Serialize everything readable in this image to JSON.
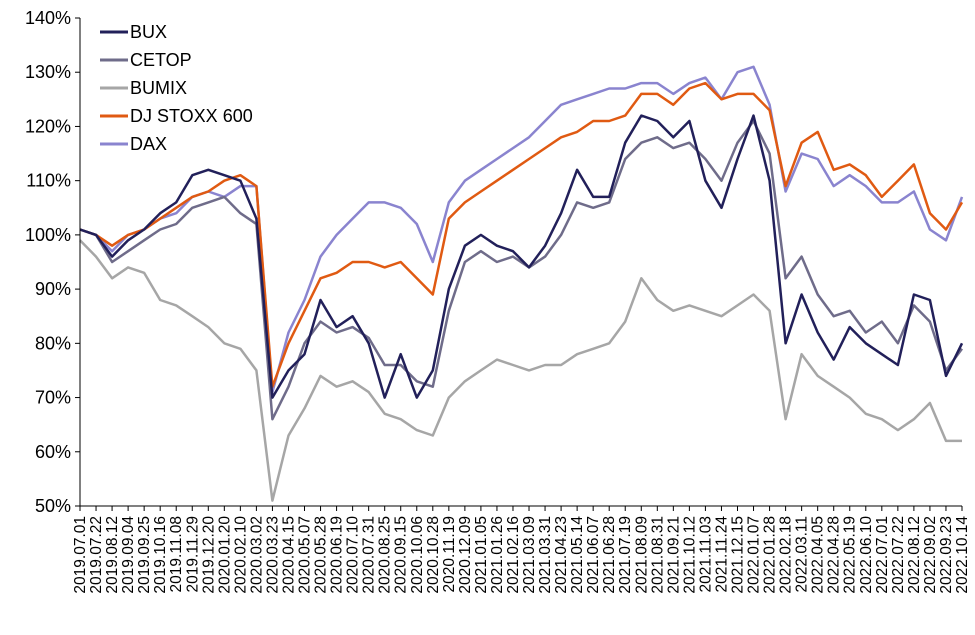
{
  "chart_data": {
    "type": "line",
    "ylim": [
      50,
      140
    ],
    "yticks": [
      {
        "value": 50,
        "label": "50%"
      },
      {
        "value": 60,
        "label": "60%"
      },
      {
        "value": 70,
        "label": "70%"
      },
      {
        "value": 80,
        "label": "80%"
      },
      {
        "value": 90,
        "label": "90%"
      },
      {
        "value": 100,
        "label": "100%"
      },
      {
        "value": 110,
        "label": "110%"
      },
      {
        "value": 120,
        "label": "120%"
      },
      {
        "value": 130,
        "label": "130%"
      },
      {
        "value": 140,
        "label": "140%"
      }
    ],
    "x": [
      "2019.07.01",
      "2019.07.22",
      "2019.08.12",
      "2019.09.04",
      "2019.09.25",
      "2019.10.16",
      "2019.11.08",
      "2019.11.29",
      "2019.12.20",
      "2020.01.20",
      "2020.02.10",
      "2020.03.02",
      "2020.03.23",
      "2020.04.15",
      "2020.05.07",
      "2020.05.28",
      "2020.06.19",
      "2020.07.10",
      "2020.07.31",
      "2020.08.25",
      "2020.09.15",
      "2020.10.06",
      "2020.10.28",
      "2020.11.19",
      "2020.12.09",
      "2021.01.05",
      "2021.01.26",
      "2021.02.16",
      "2021.03.09",
      "2021.03.31",
      "2021.04.23",
      "2021.05.14",
      "2021.06.07",
      "2021.06.28",
      "2021.07.19",
      "2021.08.09",
      "2021.08.31",
      "2021.09.21",
      "2021.10.12",
      "2021.11.03",
      "2021.11.24",
      "2021.12.15",
      "2022.01.07",
      "2022.01.28",
      "2022.02.18",
      "2022.03.11",
      "2022.04.05",
      "2022.04.28",
      "2022.05.19",
      "2022.06.10",
      "2022.07.01",
      "2022.07.22",
      "2022.08.12",
      "2022.09.02",
      "2022.09.23",
      "2022.10.14"
    ],
    "legend_position": "top-left",
    "grid": false,
    "series": [
      {
        "name": "BUX",
        "color": "#22205a",
        "values": [
          101,
          100,
          96,
          99,
          101,
          104,
          106,
          111,
          112,
          111,
          110,
          103,
          70,
          75,
          78,
          88,
          83,
          85,
          80,
          70,
          78,
          70,
          75,
          90,
          98,
          100,
          98,
          97,
          94,
          98,
          104,
          112,
          107,
          107,
          117,
          122,
          121,
          118,
          121,
          110,
          105,
          114,
          122,
          110,
          80,
          89,
          82,
          77,
          83,
          80,
          78,
          76,
          89,
          88,
          74,
          80
        ]
      },
      {
        "name": "CETOP",
        "color": "#6f6c8a",
        "values": [
          101,
          100,
          95,
          97,
          99,
          101,
          102,
          105,
          106,
          107,
          104,
          102,
          66,
          72,
          80,
          84,
          82,
          83,
          81,
          76,
          76,
          73,
          72,
          86,
          95,
          97,
          95,
          96,
          94,
          96,
          100,
          106,
          105,
          106,
          114,
          117,
          118,
          116,
          117,
          114,
          110,
          117,
          121,
          115,
          92,
          96,
          89,
          85,
          86,
          82,
          84,
          80,
          87,
          84,
          75,
          79
        ]
      },
      {
        "name": "BUMIX",
        "color": "#a6a6a6",
        "values": [
          99,
          96,
          92,
          94,
          93,
          88,
          87,
          85,
          83,
          80,
          79,
          75,
          51,
          63,
          68,
          74,
          72,
          73,
          71,
          67,
          66,
          64,
          63,
          70,
          73,
          75,
          77,
          76,
          75,
          76,
          76,
          78,
          79,
          80,
          84,
          92,
          88,
          86,
          87,
          86,
          85,
          87,
          89,
          86,
          66,
          78,
          74,
          72,
          70,
          67,
          66,
          64,
          66,
          69,
          62,
          62
        ]
      },
      {
        "name": "DJ STOXX 600",
        "color": "#e05a12",
        "values": [
          101,
          100,
          98,
          100,
          101,
          103,
          105,
          107,
          108,
          110,
          111,
          109,
          72,
          80,
          86,
          92,
          93,
          95,
          95,
          94,
          95,
          92,
          89,
          103,
          106,
          108,
          110,
          112,
          114,
          116,
          118,
          119,
          121,
          121,
          122,
          126,
          126,
          124,
          127,
          128,
          125,
          126,
          126,
          123,
          109,
          117,
          119,
          112,
          113,
          111,
          107,
          110,
          113,
          104,
          101,
          106
        ]
      },
      {
        "name": "DAX",
        "color": "#8a84cf",
        "values": [
          101,
          100,
          97,
          100,
          101,
          103,
          104,
          107,
          108,
          107,
          109,
          109,
          71,
          82,
          88,
          96,
          100,
          103,
          106,
          106,
          105,
          102,
          95,
          106,
          110,
          112,
          114,
          116,
          118,
          121,
          124,
          125,
          126,
          127,
          127,
          128,
          128,
          126,
          128,
          129,
          125,
          130,
          131,
          124,
          108,
          115,
          114,
          109,
          111,
          109,
          106,
          106,
          108,
          101,
          99,
          107
        ]
      }
    ]
  }
}
